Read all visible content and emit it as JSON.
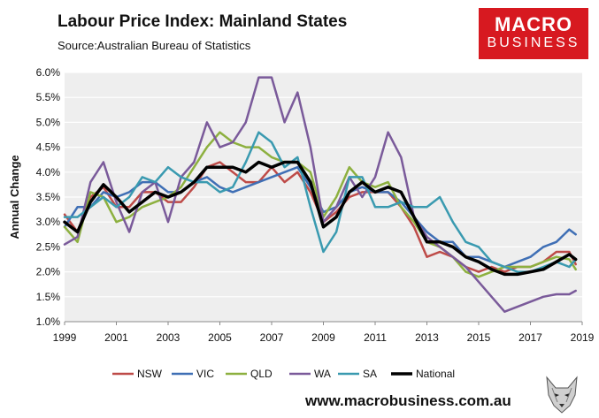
{
  "header": {
    "title": "Labour Price Index: Mainland States",
    "source": "Source:Australian Bureau of Statistics"
  },
  "logo": {
    "top": "MACRO",
    "bottom": "BUSINESS",
    "color": "#d71920"
  },
  "footer": {
    "url": "www.macrobusiness.com.au",
    "icon": "wolf-icon"
  },
  "chart_data": {
    "type": "line",
    "title": "Labour Price Index: Mainland States",
    "xlabel": "",
    "ylabel": "Annual Change",
    "xlim": [
      1999,
      2019
    ],
    "ylim": [
      1.0,
      6.0
    ],
    "grid": true,
    "legend_position": "bottom",
    "x_ticks": [
      "1999",
      "2001",
      "2003",
      "2005",
      "2007",
      "2009",
      "2011",
      "2013",
      "2015",
      "2017",
      "2019"
    ],
    "y_ticks": [
      "1.0%",
      "1.5%",
      "2.0%",
      "2.5%",
      "3.0%",
      "3.5%",
      "4.0%",
      "4.5%",
      "5.0%",
      "5.5%",
      "6.0%"
    ],
    "series": [
      {
        "name": "NSW",
        "color": "#be4b48",
        "width": 2.5,
        "points": [
          [
            1999,
            3.15
          ],
          [
            1999.5,
            2.8
          ],
          [
            2000,
            3.5
          ],
          [
            2000.5,
            3.7
          ],
          [
            2001,
            3.3
          ],
          [
            2001.5,
            3.3
          ],
          [
            2002,
            3.6
          ],
          [
            2002.5,
            3.6
          ],
          [
            2003,
            3.4
          ],
          [
            2003.5,
            3.4
          ],
          [
            2004,
            3.7
          ],
          [
            2004.5,
            4.1
          ],
          [
            2005,
            4.2
          ],
          [
            2005.5,
            4.0
          ],
          [
            2006,
            3.8
          ],
          [
            2006.5,
            3.8
          ],
          [
            2007,
            4.1
          ],
          [
            2007.5,
            3.8
          ],
          [
            2008,
            4.0
          ],
          [
            2008.5,
            3.6
          ],
          [
            2009,
            3.0
          ],
          [
            2009.5,
            3.2
          ],
          [
            2010,
            3.5
          ],
          [
            2010.5,
            3.6
          ],
          [
            2011,
            3.6
          ],
          [
            2011.5,
            3.6
          ],
          [
            2012,
            3.3
          ],
          [
            2012.5,
            2.9
          ],
          [
            2013,
            2.3
          ],
          [
            2013.5,
            2.4
          ],
          [
            2014,
            2.3
          ],
          [
            2014.5,
            2.1
          ],
          [
            2015,
            2.0
          ],
          [
            2015.5,
            2.1
          ],
          [
            2016,
            2.0
          ],
          [
            2016.5,
            2.1
          ],
          [
            2017,
            2.1
          ],
          [
            2017.5,
            2.2
          ],
          [
            2018,
            2.4
          ],
          [
            2018.5,
            2.4
          ],
          [
            2018.75,
            2.15
          ]
        ]
      },
      {
        "name": "VIC",
        "color": "#3f6fb5",
        "width": 2.5,
        "points": [
          [
            1999,
            2.9
          ],
          [
            1999.5,
            3.3
          ],
          [
            2000,
            3.3
          ],
          [
            2000.5,
            3.6
          ],
          [
            2001,
            3.5
          ],
          [
            2001.5,
            3.6
          ],
          [
            2002,
            3.8
          ],
          [
            2002.5,
            3.8
          ],
          [
            2003,
            3.6
          ],
          [
            2003.5,
            3.6
          ],
          [
            2004,
            3.8
          ],
          [
            2004.5,
            3.9
          ],
          [
            2005,
            3.7
          ],
          [
            2005.5,
            3.6
          ],
          [
            2006,
            3.7
          ],
          [
            2006.5,
            3.8
          ],
          [
            2007,
            3.9
          ],
          [
            2007.5,
            4.0
          ],
          [
            2008,
            4.1
          ],
          [
            2008.5,
            3.7
          ],
          [
            2009,
            3.2
          ],
          [
            2009.5,
            3.3
          ],
          [
            2010,
            3.6
          ],
          [
            2010.5,
            3.7
          ],
          [
            2011,
            3.6
          ],
          [
            2011.5,
            3.6
          ],
          [
            2012,
            3.4
          ],
          [
            2012.5,
            3.1
          ],
          [
            2013,
            2.8
          ],
          [
            2013.5,
            2.6
          ],
          [
            2014,
            2.6
          ],
          [
            2014.5,
            2.3
          ],
          [
            2015,
            2.3
          ],
          [
            2015.5,
            2.2
          ],
          [
            2016,
            2.1
          ],
          [
            2016.5,
            2.2
          ],
          [
            2017,
            2.3
          ],
          [
            2017.5,
            2.5
          ],
          [
            2018,
            2.6
          ],
          [
            2018.5,
            2.85
          ],
          [
            2018.75,
            2.75
          ]
        ]
      },
      {
        "name": "QLD",
        "color": "#8db03f",
        "width": 2.5,
        "points": [
          [
            1999,
            2.9
          ],
          [
            1999.5,
            2.6
          ],
          [
            2000,
            3.6
          ],
          [
            2000.5,
            3.5
          ],
          [
            2001,
            3.0
          ],
          [
            2001.5,
            3.1
          ],
          [
            2002,
            3.3
          ],
          [
            2002.5,
            3.4
          ],
          [
            2003,
            3.5
          ],
          [
            2003.5,
            3.7
          ],
          [
            2004,
            4.1
          ],
          [
            2004.5,
            4.5
          ],
          [
            2005,
            4.8
          ],
          [
            2005.5,
            4.6
          ],
          [
            2006,
            4.5
          ],
          [
            2006.5,
            4.5
          ],
          [
            2007,
            4.3
          ],
          [
            2007.5,
            4.2
          ],
          [
            2008,
            4.2
          ],
          [
            2008.5,
            4.0
          ],
          [
            2009,
            3.1
          ],
          [
            2009.5,
            3.5
          ],
          [
            2010,
            4.1
          ],
          [
            2010.5,
            3.8
          ],
          [
            2011,
            3.7
          ],
          [
            2011.5,
            3.8
          ],
          [
            2012,
            3.3
          ],
          [
            2012.5,
            3.0
          ],
          [
            2013,
            2.6
          ],
          [
            2013.5,
            2.5
          ],
          [
            2014,
            2.3
          ],
          [
            2014.5,
            2.0
          ],
          [
            2015,
            1.9
          ],
          [
            2015.5,
            2.0
          ],
          [
            2016,
            2.1
          ],
          [
            2016.5,
            2.1
          ],
          [
            2017,
            2.1
          ],
          [
            2017.5,
            2.2
          ],
          [
            2018,
            2.3
          ],
          [
            2018.5,
            2.25
          ],
          [
            2018.75,
            2.05
          ]
        ]
      },
      {
        "name": "WA",
        "color": "#7a5a9a",
        "width": 2.5,
        "points": [
          [
            1999,
            2.55
          ],
          [
            1999.5,
            2.7
          ],
          [
            2000,
            3.8
          ],
          [
            2000.5,
            4.2
          ],
          [
            2001,
            3.4
          ],
          [
            2001.5,
            2.8
          ],
          [
            2002,
            3.6
          ],
          [
            2002.5,
            3.8
          ],
          [
            2003,
            3.0
          ],
          [
            2003.5,
            3.9
          ],
          [
            2004,
            4.2
          ],
          [
            2004.5,
            5.0
          ],
          [
            2005,
            4.5
          ],
          [
            2005.5,
            4.6
          ],
          [
            2006,
            5.0
          ],
          [
            2006.5,
            5.9
          ],
          [
            2007,
            5.9
          ],
          [
            2007.5,
            5.0
          ],
          [
            2008,
            5.6
          ],
          [
            2008.5,
            4.5
          ],
          [
            2009,
            3.0
          ],
          [
            2009.5,
            3.3
          ],
          [
            2010,
            3.9
          ],
          [
            2010.5,
            3.5
          ],
          [
            2011,
            3.9
          ],
          [
            2011.5,
            4.8
          ],
          [
            2012,
            4.3
          ],
          [
            2012.5,
            3.1
          ],
          [
            2013,
            2.7
          ],
          [
            2013.5,
            2.5
          ],
          [
            2014,
            2.3
          ],
          [
            2014.5,
            2.1
          ],
          [
            2015,
            1.8
          ],
          [
            2015.5,
            1.5
          ],
          [
            2016,
            1.2
          ],
          [
            2016.5,
            1.3
          ],
          [
            2017,
            1.4
          ],
          [
            2017.5,
            1.5
          ],
          [
            2018,
            1.55
          ],
          [
            2018.5,
            1.55
          ],
          [
            2018.75,
            1.62
          ]
        ]
      },
      {
        "name": "SA",
        "color": "#3a9ab0",
        "width": 2.5,
        "points": [
          [
            1999,
            3.1
          ],
          [
            1999.5,
            3.1
          ],
          [
            2000,
            3.3
          ],
          [
            2000.5,
            3.5
          ],
          [
            2001,
            3.3
          ],
          [
            2001.5,
            3.5
          ],
          [
            2002,
            3.9
          ],
          [
            2002.5,
            3.8
          ],
          [
            2003,
            4.1
          ],
          [
            2003.5,
            3.9
          ],
          [
            2004,
            3.8
          ],
          [
            2004.5,
            3.8
          ],
          [
            2005,
            3.6
          ],
          [
            2005.5,
            3.7
          ],
          [
            2006,
            4.2
          ],
          [
            2006.5,
            4.8
          ],
          [
            2007,
            4.6
          ],
          [
            2007.5,
            4.1
          ],
          [
            2008,
            4.3
          ],
          [
            2008.5,
            3.3
          ],
          [
            2009,
            2.4
          ],
          [
            2009.5,
            2.8
          ],
          [
            2010,
            3.9
          ],
          [
            2010.5,
            3.9
          ],
          [
            2011,
            3.3
          ],
          [
            2011.5,
            3.3
          ],
          [
            2012,
            3.4
          ],
          [
            2012.5,
            3.3
          ],
          [
            2013,
            3.3
          ],
          [
            2013.5,
            3.5
          ],
          [
            2014,
            3.0
          ],
          [
            2014.5,
            2.6
          ],
          [
            2015,
            2.5
          ],
          [
            2015.5,
            2.2
          ],
          [
            2016,
            2.1
          ],
          [
            2016.5,
            2.0
          ],
          [
            2017,
            2.0
          ],
          [
            2017.5,
            2.1
          ],
          [
            2018,
            2.2
          ],
          [
            2018.5,
            2.1
          ],
          [
            2018.75,
            2.25
          ]
        ]
      },
      {
        "name": "National",
        "color": "#000000",
        "width": 3.5,
        "points": [
          [
            1999,
            3.0
          ],
          [
            1999.5,
            2.8
          ],
          [
            2000,
            3.4
          ],
          [
            2000.5,
            3.75
          ],
          [
            2001,
            3.5
          ],
          [
            2001.5,
            3.2
          ],
          [
            2002,
            3.4
          ],
          [
            2002.5,
            3.6
          ],
          [
            2003,
            3.5
          ],
          [
            2003.5,
            3.6
          ],
          [
            2004,
            3.8
          ],
          [
            2004.5,
            4.1
          ],
          [
            2005,
            4.1
          ],
          [
            2005.5,
            4.1
          ],
          [
            2006,
            4.0
          ],
          [
            2006.5,
            4.2
          ],
          [
            2007,
            4.1
          ],
          [
            2007.5,
            4.2
          ],
          [
            2008,
            4.2
          ],
          [
            2008.5,
            3.8
          ],
          [
            2009,
            2.9
          ],
          [
            2009.5,
            3.1
          ],
          [
            2010,
            3.6
          ],
          [
            2010.5,
            3.8
          ],
          [
            2011,
            3.6
          ],
          [
            2011.5,
            3.7
          ],
          [
            2012,
            3.6
          ],
          [
            2012.5,
            3.1
          ],
          [
            2013,
            2.6
          ],
          [
            2013.5,
            2.6
          ],
          [
            2014,
            2.5
          ],
          [
            2014.5,
            2.3
          ],
          [
            2015,
            2.2
          ],
          [
            2015.5,
            2.05
          ],
          [
            2016,
            1.95
          ],
          [
            2016.5,
            1.95
          ],
          [
            2017,
            2.0
          ],
          [
            2017.5,
            2.05
          ],
          [
            2018,
            2.2
          ],
          [
            2018.5,
            2.35
          ],
          [
            2018.75,
            2.25
          ]
        ]
      }
    ]
  }
}
